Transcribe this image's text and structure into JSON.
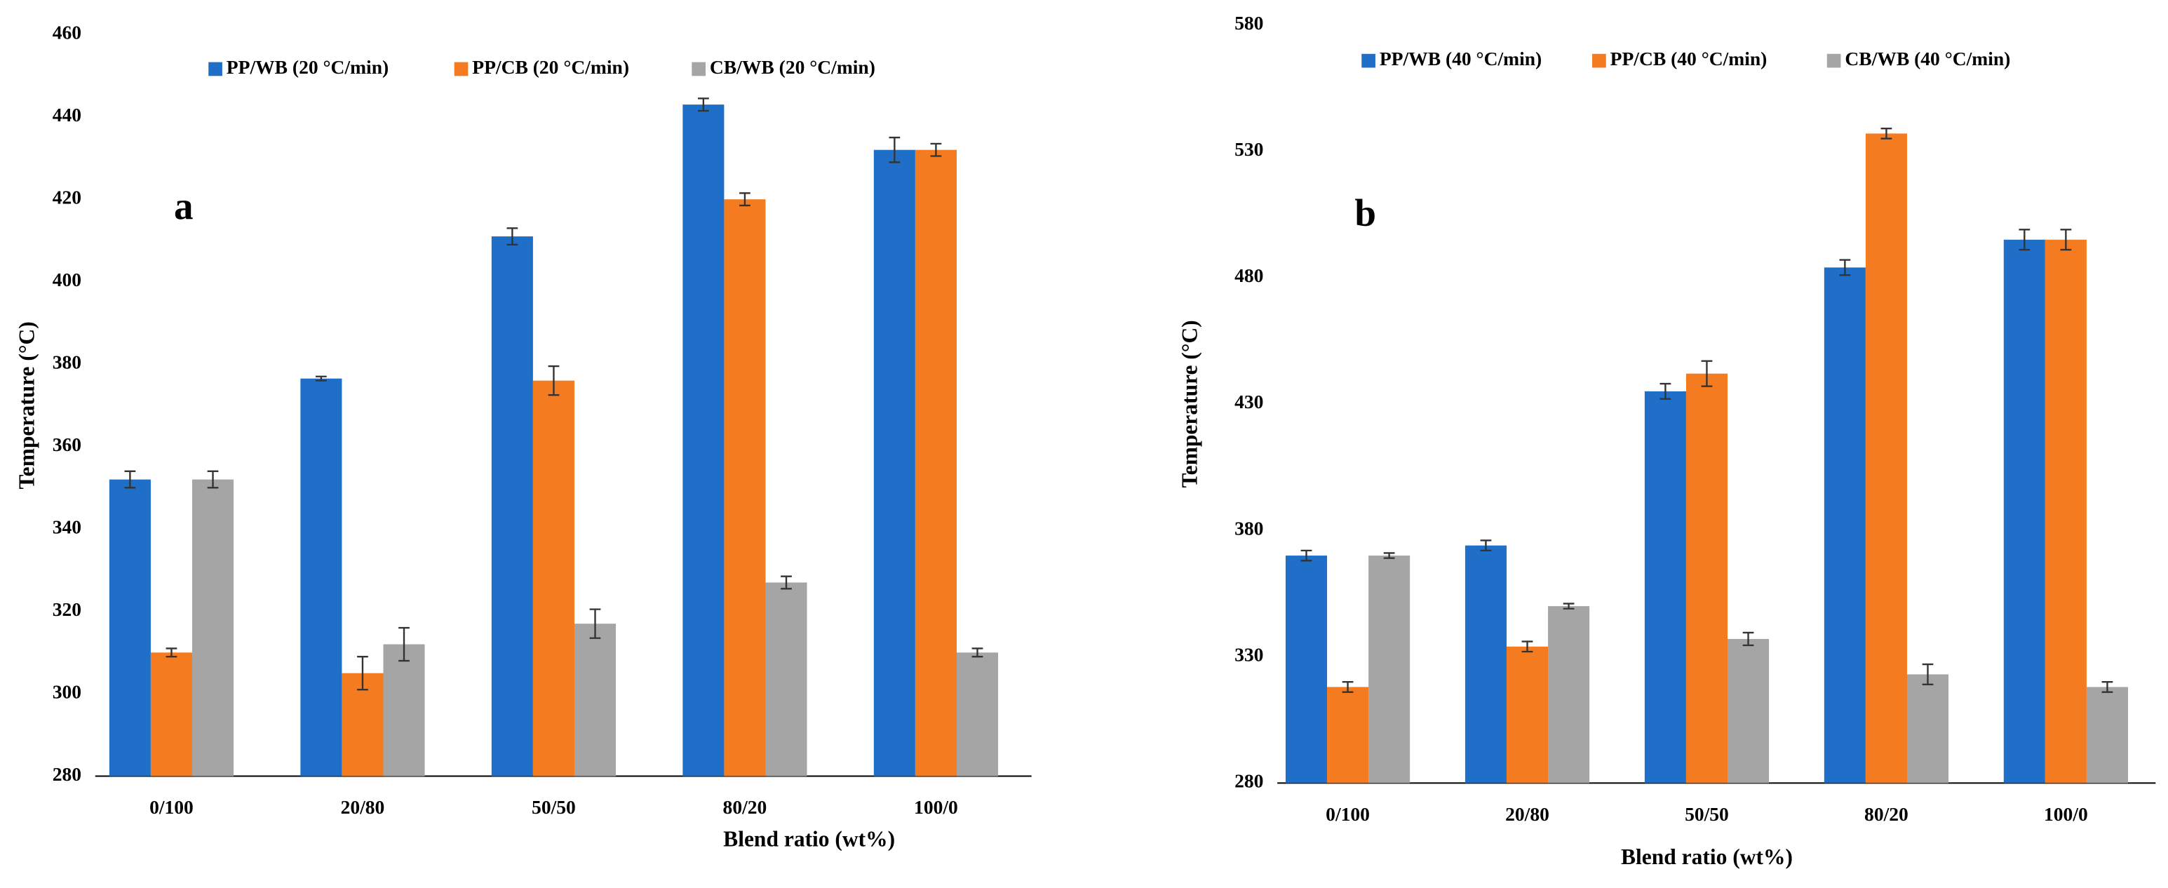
{
  "chart_data": [
    {
      "type": "bar",
      "annotation": "a",
      "y_label": "Temperature (°C)",
      "x_label": "Blend ratio (wt%)",
      "categories": [
        "0/100",
        "20/80",
        "50/50",
        "80/20",
        "100/0"
      ],
      "series": [
        {
          "name": "PP/WB (20 °C/min)",
          "color": "#1f6fc9",
          "values": [
            352,
            376.5,
            411,
            443,
            432
          ],
          "errors": [
            2,
            0.5,
            2,
            1.5,
            3
          ]
        },
        {
          "name": "PP/CB (20 °C/min)",
          "color": "#f47b20",
          "values": [
            310,
            305,
            376,
            420,
            432
          ],
          "errors": [
            1,
            4,
            3.5,
            1.5,
            1.5
          ]
        },
        {
          "name": "CB/WB (20 °C/min)",
          "color": "#a5a5a5",
          "values": [
            352,
            312,
            317,
            327,
            310
          ],
          "errors": [
            2,
            4,
            3.5,
            1.5,
            1
          ]
        }
      ],
      "ylim": [
        280,
        460
      ],
      "yticks": [
        280,
        300,
        320,
        340,
        360,
        380,
        400,
        420,
        440,
        460
      ],
      "grid": false,
      "legend": "top"
    },
    {
      "type": "bar",
      "annotation": "b",
      "y_label": "Temperature (°C)",
      "x_label": "Blend ratio (wt%)",
      "categories": [
        "0/100",
        "20/80",
        "50/50",
        "80/20",
        "100/0"
      ],
      "series": [
        {
          "name": "PP/WB (40 °C/min)",
          "color": "#1f6fc9",
          "values": [
            370,
            374,
            435,
            484,
            495
          ],
          "errors": [
            2,
            2,
            3,
            3,
            4
          ]
        },
        {
          "name": "PP/CB (40 °C/min)",
          "color": "#f47b20",
          "values": [
            318,
            334,
            442,
            537,
            495
          ],
          "errors": [
            2,
            2,
            5,
            2,
            4
          ]
        },
        {
          "name": "CB/WB (40 °C/min)",
          "color": "#a5a5a5",
          "values": [
            370,
            350,
            337,
            323,
            318
          ],
          "errors": [
            1,
            1,
            2.5,
            4,
            2
          ]
        }
      ],
      "ylim": [
        280,
        580
      ],
      "yticks": [
        280,
        330,
        380,
        430,
        480,
        530,
        580
      ],
      "grid": false,
      "legend": "top"
    }
  ]
}
